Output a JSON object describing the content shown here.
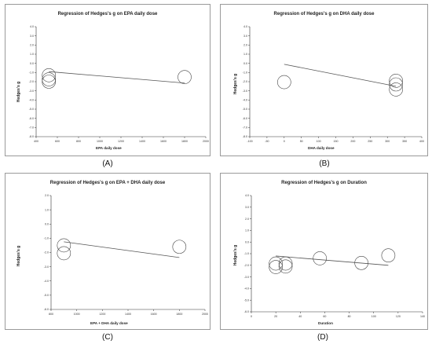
{
  "captions": [
    "(A)",
    "(B)",
    "(C)",
    "(D)"
  ],
  "chart_data": [
    {
      "type": "scatter",
      "title": "Regression of Hedges's g on EPA daily dose",
      "xlabel": "EPA daily dose",
      "ylabel": "Hedges's g",
      "xlim": [
        400,
        2000
      ],
      "ylim": [
        -8.0,
        4.0
      ],
      "xticks": [
        "400",
        "600",
        "800",
        "1000",
        "1200",
        "1400",
        "1600",
        "1800",
        "2000"
      ],
      "yticks": [
        "4.0",
        "3.0",
        "2.0",
        "1.0",
        "0.0",
        "-1.0",
        "-2.0",
        "-3.0",
        "-4.0",
        "-5.0",
        "-6.0",
        "-7.0",
        "-8.0"
      ],
      "points": [
        {
          "x": 520,
          "y": -1.3
        },
        {
          "x": 520,
          "y": -1.75
        },
        {
          "x": 520,
          "y": -2.0
        },
        {
          "x": 1800,
          "y": -1.5
        }
      ],
      "regression": {
        "x": [
          520,
          1800
        ],
        "y": [
          -0.9,
          -2.15
        ]
      },
      "grid": false
    },
    {
      "type": "scatter",
      "title": "Regression of Hedges's g on DHA daily dose",
      "xlabel": "DHA daily dose",
      "ylabel": "Hedges's g",
      "xlim": [
        -100,
        400
      ],
      "ylim": [
        -8.0,
        4.0
      ],
      "xticks": [
        "-100",
        "-50",
        "0",
        "50",
        "100",
        "150",
        "200",
        "250",
        "300",
        "350",
        "400"
      ],
      "yticks": [
        "4.0",
        "3.0",
        "2.0",
        "1.0",
        "0.0",
        "-1.0",
        "-2.0",
        "-3.0",
        "-4.0",
        "-5.0",
        "-6.0",
        "-7.0",
        "-8.0"
      ],
      "points": [
        {
          "x": 0,
          "y": -2.05
        },
        {
          "x": 325,
          "y": -1.9
        },
        {
          "x": 325,
          "y": -2.3
        },
        {
          "x": 325,
          "y": -2.85
        }
      ],
      "regression": {
        "x": [
          0,
          325
        ],
        "y": [
          -0.1,
          -2.5
        ]
      },
      "grid": false
    },
    {
      "type": "scatter",
      "title": "Regression of Hedges's g on EPA + DHA daily dose",
      "xlabel": "EPA + DHA daily dose",
      "ylabel": "Hedges's g",
      "xlim": [
        800,
        2000
      ],
      "ylim": [
        -6.0,
        2.0
      ],
      "xticks": [
        "800",
        "1000",
        "1200",
        "1400",
        "1600",
        "1800",
        "2000"
      ],
      "yticks": [
        "2.0",
        "1.0",
        "0.0",
        "-1.0",
        "-2.0",
        "-3.0",
        "-4.0",
        "-5.0",
        "-6.0"
      ],
      "points": [
        {
          "x": 900,
          "y": -1.5
        },
        {
          "x": 900,
          "y": -2.05
        },
        {
          "x": 1800,
          "y": -1.6
        }
      ],
      "regression": {
        "x": [
          900,
          1800
        ],
        "y": [
          -1.25,
          -2.35
        ]
      },
      "grid": false
    },
    {
      "type": "scatter",
      "title": "Regression of Hedges's g on Duration",
      "xlabel": "Duration",
      "ylabel": "Hedges's g",
      "xlim": [
        0,
        140
      ],
      "ylim": [
        -6.0,
        4.0
      ],
      "xticks": [
        "0",
        "20",
        "40",
        "60",
        "80",
        "100",
        "120",
        "140"
      ],
      "yticks": [
        "4.0",
        "3.0",
        "2.0",
        "1.0",
        "0.0",
        "-1.0",
        "-2.0",
        "-3.0",
        "-4.0",
        "-5.0",
        "-6.0"
      ],
      "points": [
        {
          "x": 20,
          "y": -1.85
        },
        {
          "x": 20,
          "y": -2.15
        },
        {
          "x": 28,
          "y": -1.85
        },
        {
          "x": 28,
          "y": -2.1
        },
        {
          "x": 56,
          "y": -1.4
        },
        {
          "x": 90,
          "y": -1.8
        },
        {
          "x": 112,
          "y": -1.15
        }
      ],
      "regression": {
        "x": [
          20,
          112
        ],
        "y": [
          -1.2,
          -2.0
        ]
      },
      "grid": false
    }
  ]
}
